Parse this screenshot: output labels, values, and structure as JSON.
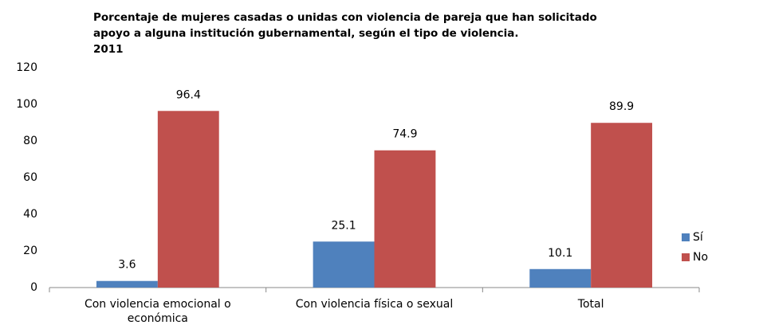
{
  "chart_data": {
    "type": "bar",
    "title": [
      "Porcentaje de mujeres casadas o unidas con violencia de pareja que han solicitado",
      "apoyo a alguna institución gubernamental, según el tipo de violencia.",
      "2011"
    ],
    "categories": [
      "Con violencia emocional o económica",
      "Con violencia física o sexual",
      "Total"
    ],
    "series": [
      {
        "name": "Sí",
        "color": "#4f81bd",
        "values": [
          3.6,
          25.1,
          10.1
        ]
      },
      {
        "name": "No",
        "color": "#c0504d",
        "values": [
          96.4,
          74.9,
          89.9
        ]
      }
    ],
    "ylim": [
      0,
      120
    ],
    "yticks": [
      0,
      20,
      40,
      60,
      80,
      100,
      120
    ],
    "grid": false,
    "legend": "right"
  }
}
